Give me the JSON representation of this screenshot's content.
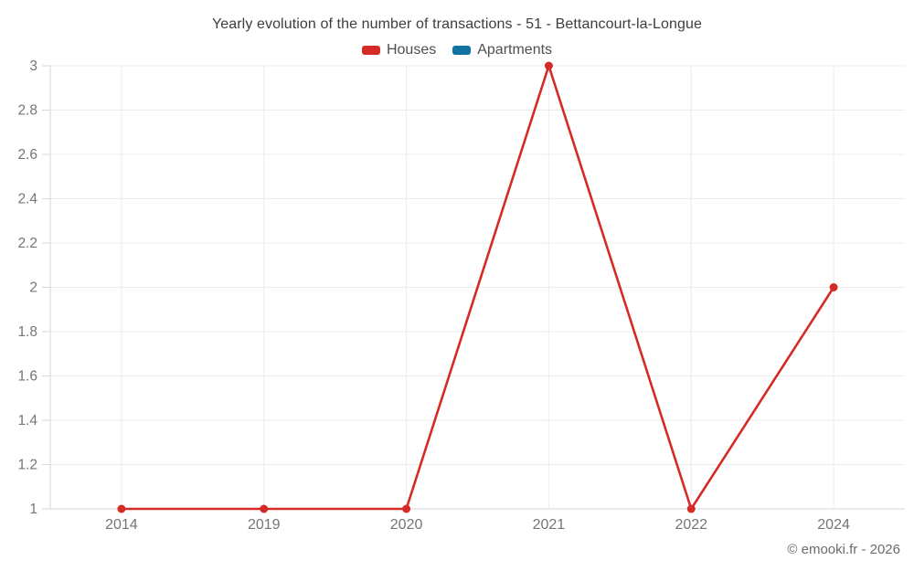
{
  "title": "Yearly evolution of the number of transactions - 51 - Bettancourt-la-Longue",
  "watermark": "© emooki.fr - 2026",
  "legend": {
    "items": [
      {
        "label": "Houses",
        "color": "#d42b26"
      },
      {
        "label": "Apartments",
        "color": "#0e72a3"
      }
    ]
  },
  "chart_data": {
    "type": "line",
    "title": "Yearly evolution of the number of transactions - 51 - Bettancourt-la-Longue",
    "categories": [
      "2014",
      "2019",
      "2020",
      "2021",
      "2022",
      "2024"
    ],
    "series": [
      {
        "name": "Houses",
        "color": "#d42b26",
        "values": [
          1,
          1,
          1,
          3,
          1,
          2
        ]
      },
      {
        "name": "Apartments",
        "color": "#0e72a3",
        "values": []
      }
    ],
    "xlabel": "",
    "ylabel": "",
    "ylim": [
      1,
      3
    ],
    "yticks": [
      1,
      1.2,
      1.4,
      1.6,
      1.8,
      2,
      2.2,
      2.4,
      2.6,
      2.8,
      3
    ],
    "grid": true,
    "legend_position": "top",
    "marker": "circle"
  },
  "colors": {
    "grid": "#ececec",
    "axis": "#d6d6d6",
    "tick_label": "#757575",
    "background": "#ffffff"
  }
}
